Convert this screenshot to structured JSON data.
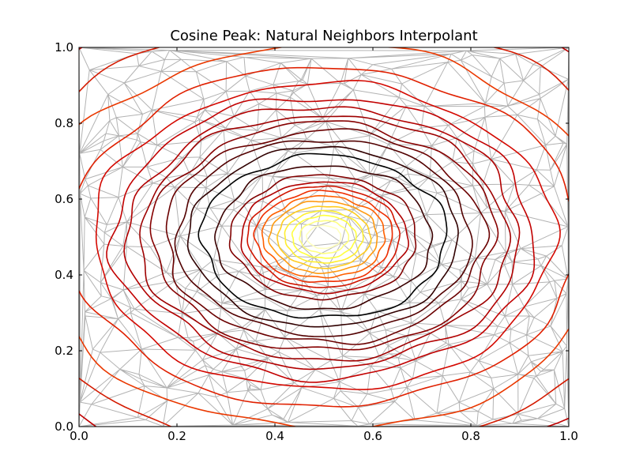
{
  "chart_data": {
    "type": "contour",
    "title": "Cosine Peak: Natural Neighbors Interpolant",
    "xlabel": "",
    "ylabel": "",
    "xlim": [
      0.0,
      1.0
    ],
    "ylim": [
      0.0,
      1.0
    ],
    "x_ticks": [
      "0.0",
      "0.2",
      "0.4",
      "0.6",
      "0.8",
      "1.0"
    ],
    "y_ticks": [
      "0.0",
      "0.2",
      "0.4",
      "0.6",
      "0.8",
      "1.0"
    ],
    "grid": false,
    "legend": "none",
    "colormap": "hot",
    "peak_center": [
      0.5,
      0.5
    ],
    "contour_radii": [
      0.035,
      0.05,
      0.065,
      0.08,
      0.095,
      0.11,
      0.125,
      0.14,
      0.155,
      0.17,
      0.19,
      0.22,
      0.25,
      0.275,
      0.3,
      0.325,
      0.35,
      0.375,
      0.4,
      0.43,
      0.47,
      0.52,
      0.59,
      0.67,
      0.75
    ],
    "contour_colors": [
      "#ffffc0",
      "#ffff80",
      "#ffff40",
      "#ffee30",
      "#ffcc20",
      "#ff9a10",
      "#ff6000",
      "#ee2d00",
      "#d01500",
      "#b00000",
      "#800000",
      "#3a0000",
      "#000000",
      "#300000",
      "#520000",
      "#6a0000",
      "#860000",
      "#9e0000",
      "#b20000",
      "#c20000",
      "#d40800",
      "#e02000",
      "#ea3800",
      "#d41a00",
      "#c00000"
    ],
    "triangulation": {
      "edge_color": "#b3b3b3",
      "point_count": 400
    }
  }
}
